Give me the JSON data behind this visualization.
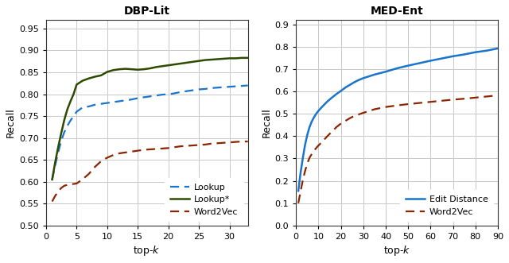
{
  "dbp_title": "DBP-Lit",
  "med_title": "MED-Ent",
  "xlabel": "top-k",
  "ylabel": "Recall",
  "fig_bg": "#ffffff",
  "plot_bg": "#ffffff",
  "dbp": {
    "xlim": [
      0,
      33
    ],
    "ylim": [
      0.5,
      0.97
    ],
    "xticks": [
      0,
      5,
      10,
      15,
      20,
      25,
      30
    ],
    "yticks": [
      0.5,
      0.55,
      0.6,
      0.65,
      0.7,
      0.75,
      0.8,
      0.85,
      0.9,
      0.95
    ],
    "lookup_x": [
      1,
      1.5,
      2,
      2.5,
      3,
      3.5,
      4,
      4.5,
      5,
      6,
      7,
      8,
      9,
      10,
      11,
      12,
      13,
      14,
      15,
      16,
      17,
      18,
      19,
      20,
      21,
      22,
      23,
      24,
      25,
      26,
      27,
      28,
      29,
      30,
      31,
      32,
      33
    ],
    "lookup_y": [
      0.605,
      0.638,
      0.668,
      0.694,
      0.714,
      0.728,
      0.74,
      0.75,
      0.76,
      0.77,
      0.772,
      0.776,
      0.778,
      0.78,
      0.782,
      0.784,
      0.786,
      0.788,
      0.791,
      0.793,
      0.795,
      0.797,
      0.799,
      0.8,
      0.802,
      0.805,
      0.807,
      0.809,
      0.811,
      0.812,
      0.814,
      0.815,
      0.816,
      0.817,
      0.818,
      0.819,
      0.82
    ],
    "lookupstar_x": [
      1,
      1.5,
      2,
      2.5,
      3,
      3.5,
      4,
      4.5,
      5,
      6,
      7,
      8,
      9,
      10,
      11,
      12,
      13,
      14,
      15,
      16,
      17,
      18,
      19,
      20,
      21,
      22,
      23,
      24,
      25,
      26,
      27,
      28,
      29,
      30,
      31,
      32,
      33
    ],
    "lookupstar_y": [
      0.605,
      0.645,
      0.68,
      0.712,
      0.742,
      0.766,
      0.784,
      0.8,
      0.822,
      0.831,
      0.836,
      0.84,
      0.843,
      0.851,
      0.855,
      0.857,
      0.858,
      0.857,
      0.856,
      0.857,
      0.859,
      0.862,
      0.864,
      0.866,
      0.868,
      0.87,
      0.872,
      0.874,
      0.876,
      0.878,
      0.879,
      0.88,
      0.881,
      0.882,
      0.882,
      0.883,
      0.883
    ],
    "word2vec_x": [
      1,
      1.5,
      2,
      2.5,
      3,
      3.5,
      4,
      4.5,
      5,
      6,
      7,
      8,
      9,
      10,
      11,
      12,
      13,
      14,
      15,
      16,
      17,
      18,
      19,
      20,
      21,
      22,
      23,
      24,
      25,
      26,
      27,
      28,
      29,
      30,
      31,
      32,
      33
    ],
    "word2vec_y": [
      0.555,
      0.568,
      0.578,
      0.586,
      0.591,
      0.593,
      0.594,
      0.595,
      0.596,
      0.606,
      0.618,
      0.634,
      0.647,
      0.655,
      0.661,
      0.665,
      0.667,
      0.669,
      0.671,
      0.673,
      0.674,
      0.675,
      0.676,
      0.677,
      0.679,
      0.681,
      0.682,
      0.683,
      0.684,
      0.685,
      0.687,
      0.688,
      0.689,
      0.69,
      0.691,
      0.692,
      0.692
    ],
    "lookup_color": "#1874cd",
    "lookupstar_color": "#2d4a00",
    "word2vec_color": "#8b2500",
    "grid_color": "#c8c8c8"
  },
  "med": {
    "xlim": [
      0,
      90
    ],
    "ylim": [
      0,
      0.92
    ],
    "xticks": [
      0,
      10,
      20,
      30,
      40,
      50,
      60,
      70,
      80,
      90
    ],
    "yticks": [
      0,
      0.1,
      0.2,
      0.3,
      0.4,
      0.5,
      0.6,
      0.7,
      0.8,
      0.9
    ],
    "edit_x": [
      1,
      2,
      3,
      4,
      5,
      6,
      7,
      8,
      9,
      10,
      12,
      14,
      16,
      18,
      20,
      22,
      24,
      26,
      28,
      30,
      35,
      40,
      45,
      50,
      55,
      60,
      65,
      70,
      75,
      80,
      85,
      90
    ],
    "edit_y": [
      0.155,
      0.235,
      0.3,
      0.36,
      0.405,
      0.44,
      0.465,
      0.484,
      0.5,
      0.513,
      0.535,
      0.555,
      0.572,
      0.588,
      0.602,
      0.617,
      0.629,
      0.641,
      0.651,
      0.659,
      0.675,
      0.688,
      0.703,
      0.715,
      0.726,
      0.737,
      0.747,
      0.757,
      0.765,
      0.775,
      0.782,
      0.792
    ],
    "word2vec_x": [
      1,
      2,
      3,
      4,
      5,
      6,
      7,
      8,
      9,
      10,
      12,
      14,
      16,
      18,
      20,
      22,
      24,
      26,
      28,
      30,
      35,
      40,
      45,
      50,
      55,
      60,
      65,
      70,
      75,
      80,
      85,
      90
    ],
    "word2vec_y": [
      0.1,
      0.152,
      0.202,
      0.243,
      0.277,
      0.303,
      0.32,
      0.334,
      0.347,
      0.358,
      0.378,
      0.4,
      0.42,
      0.44,
      0.456,
      0.468,
      0.48,
      0.49,
      0.497,
      0.504,
      0.52,
      0.53,
      0.537,
      0.543,
      0.548,
      0.553,
      0.558,
      0.563,
      0.567,
      0.572,
      0.577,
      0.582
    ],
    "edit_color": "#1874cd",
    "word2vec_color": "#8b2500",
    "grid_color": "#c8c8c8"
  }
}
